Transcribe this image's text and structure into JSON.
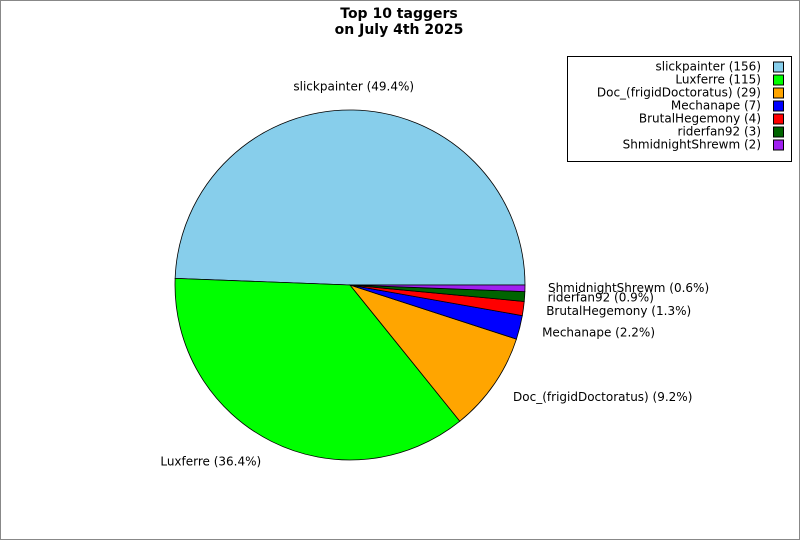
{
  "chart_data": {
    "type": "pie",
    "title": "Top 10 taggers",
    "subtitle": "on July 4th 2025",
    "categories": [
      "slickpainter (156)",
      "Luxferre (115)",
      "Doc_(frigidDoctoratus) (29)",
      "Mechanape (7)",
      "BrutalHegemony (4)",
      "riderfan92 (3)",
      "ShmidnightShrewm (2)"
    ],
    "values": [
      49.4,
      36.4,
      9.2,
      2.2,
      1.3,
      0.9,
      0.6
    ],
    "value_labels": [
      "slickpainter (49.4%)",
      "Luxferre (36.4%)",
      "Doc_(frigidDoctoratus) (9.2%)",
      "Mechanape (2.2%)",
      "BrutalHegemony (1.3%)",
      "riderfan92 (0.9%)",
      "ShmidnightShrewm (0.6%)"
    ],
    "colors": [
      "#87ceeb",
      "#00ff00",
      "#ffa500",
      "#0000ff",
      "#ff0000",
      "#006400",
      "#a020f0"
    ],
    "legend": "upper right"
  }
}
